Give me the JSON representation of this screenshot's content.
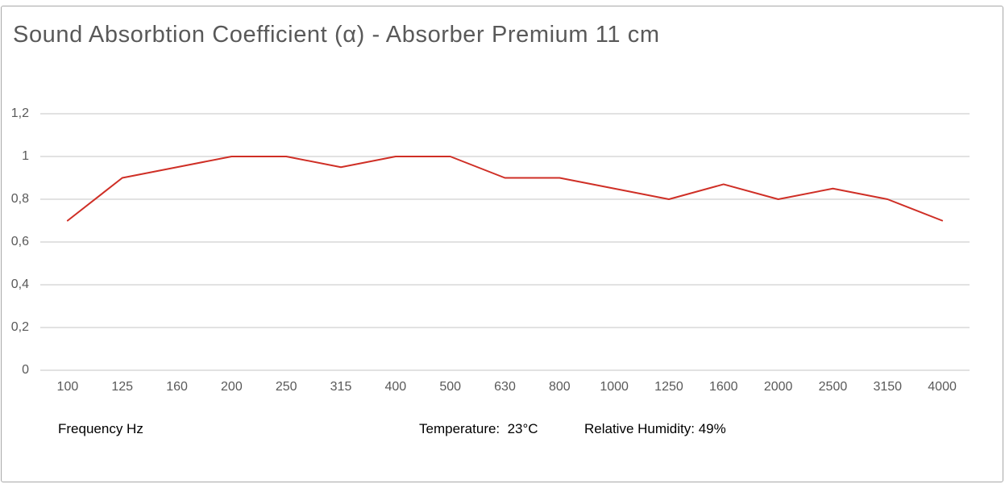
{
  "title": "Sound Absorbtion Coefficient (α) - Absorber Premium 11 cm",
  "footer": {
    "x_axis_label": "Frequency Hz",
    "temperature": "Temperature:  23°C",
    "humidity": "Relative Humidity: 49%"
  },
  "chart_data": {
    "type": "line",
    "title": "Sound Absorbtion Coefficient (α) - Absorber Premium 11 cm",
    "categories": [
      "100",
      "125",
      "160",
      "200",
      "250",
      "315",
      "400",
      "500",
      "630",
      "800",
      "1000",
      "1250",
      "1600",
      "2000",
      "2500",
      "3150",
      "4000"
    ],
    "series": [
      {
        "name": "Absorber Premium 11 cm",
        "values": [
          0.7,
          0.9,
          0.95,
          1.0,
          1.0,
          0.95,
          1.0,
          1.0,
          0.9,
          0.9,
          0.85,
          0.8,
          0.87,
          0.8,
          0.85,
          0.8,
          0.7
        ]
      }
    ],
    "xlabel": "Frequency Hz",
    "ylabel": "",
    "ylim": [
      0,
      1.2
    ],
    "ytick_step": 0.2,
    "ytick_labels": [
      "0",
      "0,2",
      "0,4",
      "0,6",
      "0,8",
      "1",
      "1,2"
    ],
    "grid": true,
    "legend": "none",
    "annotations": [
      "Temperature:  23°C",
      "Relative Humidity: 49%"
    ],
    "line_color": "#cf2f26",
    "gridline_color": "#d9d9d9",
    "tick_color": "#595959",
    "title_color": "#595959"
  }
}
